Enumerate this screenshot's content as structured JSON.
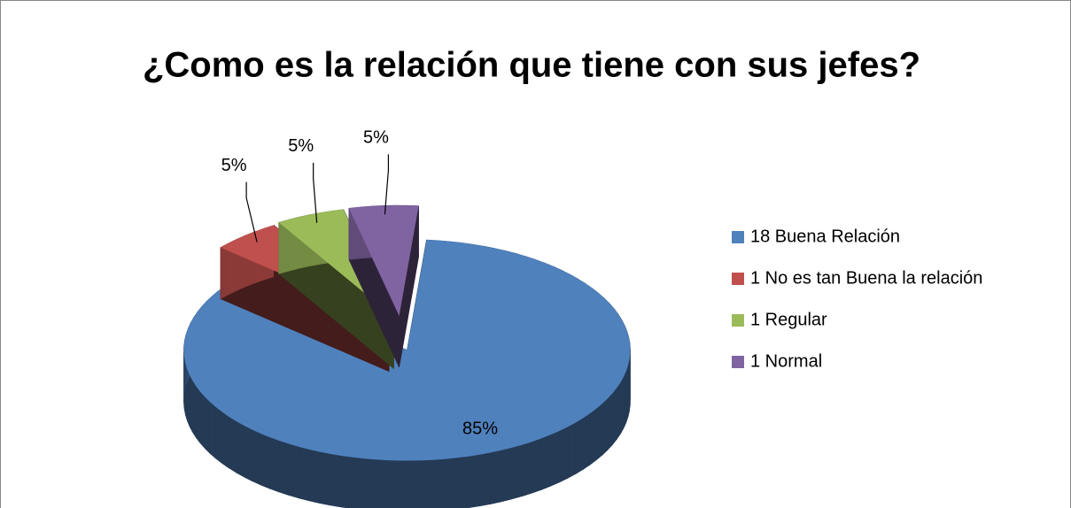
{
  "chart_data": {
    "type": "pie",
    "title": "¿Como es la relación que tiene con sus jefes?",
    "categories": [
      "18 Buena Relación",
      "1 No es tan Buena la relación",
      "1 Regular",
      "1 Normal"
    ],
    "values": [
      85,
      5,
      5,
      5
    ],
    "value_labels": [
      "85%",
      "5%",
      "5%",
      "5%"
    ],
    "colors": [
      "#4f81bd",
      "#c0504d",
      "#9bbb59",
      "#8064a2"
    ],
    "legend": "right"
  }
}
